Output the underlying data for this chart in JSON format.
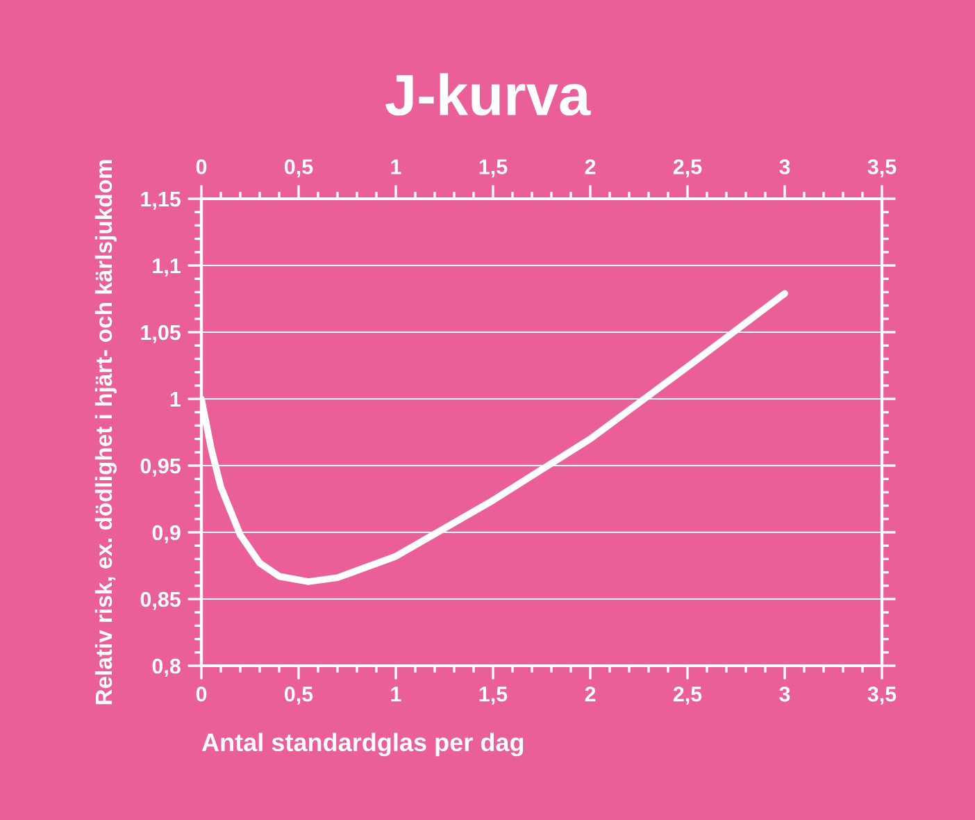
{
  "chart_data": {
    "type": "line",
    "title": "J-kurva",
    "xlabel": "Antal standardglas per dag",
    "ylabel": "Relativ risk, ex. dödlighet i hjärt- och kärlsjukdom",
    "series": [
      {
        "color": "#ffffff",
        "x": [
          0,
          0.05,
          0.1,
          0.2,
          0.3,
          0.4,
          0.55,
          0.7,
          1.0,
          1.5,
          2.0,
          2.5,
          3.0
        ],
        "values": [
          1.0,
          0.963,
          0.934,
          0.898,
          0.877,
          0.867,
          0.863,
          0.866,
          0.882,
          0.924,
          0.97,
          1.024,
          1.079
        ]
      }
    ],
    "xlim": [
      0,
      3.5
    ],
    "xticks": [
      0,
      {
        "value": 0.5,
        "label": "0,5"
      },
      1,
      {
        "value": 1.5,
        "label": "1,5"
      },
      2,
      {
        "value": 2.5,
        "label": "2,5"
      },
      3,
      {
        "value": 3.5,
        "label": "3,5"
      }
    ],
    "x2lim": [
      0,
      3.5
    ],
    "x2ticks": [
      0,
      {
        "value": 0.5,
        "label": "0,5"
      },
      1,
      {
        "value": 1.5,
        "label": "1,5"
      },
      2,
      {
        "value": 2.5,
        "label": "2,5"
      },
      3,
      {
        "value": 3.5,
        "label": "3,5"
      }
    ],
    "ylim": [
      0.8,
      1.15
    ],
    "yticks": [
      {
        "value": 0.8,
        "label": "0,8"
      },
      {
        "value": 0.85,
        "label": "0,85"
      },
      {
        "value": 0.9,
        "label": "0,9"
      },
      {
        "value": 0.95,
        "label": "0,95"
      },
      1,
      {
        "value": 1.05,
        "label": "1,05"
      },
      {
        "value": 1.1,
        "label": "1,1"
      },
      {
        "value": 1.15,
        "label": "1,15"
      }
    ],
    "grid": "y",
    "marker": "none",
    "line_style": "solid"
  }
}
